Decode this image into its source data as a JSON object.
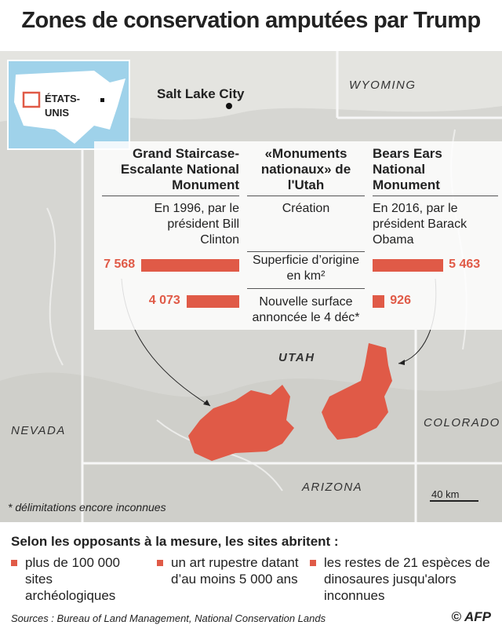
{
  "title": "Zones de conservation amputées par Trump",
  "inset": {
    "label_lines": [
      "ÉTATS-",
      "UNIS"
    ]
  },
  "map_labels": {
    "city": "Salt Lake City",
    "wyoming": "WYOMING",
    "utah": "UTAH",
    "nevada": "NEVADA",
    "colorado": "COLORADO",
    "arizona": "ARIZONA",
    "scale": "40 km"
  },
  "chart_data": {
    "type": "bar",
    "column_header": "«Monuments nationaux» de l'Utah",
    "row_labels": [
      "Création",
      "Superficie d’origine en km²",
      "Nouvelle surface annoncée le 4 déc*"
    ],
    "series": [
      {
        "name": "Grand Staircase-Escalante National Monument",
        "color": "#e05a47",
        "creation": "En 1996, par le président Bill Clinton",
        "values": [
          7568,
          4073
        ],
        "value_labels": [
          "7 568",
          "4 073"
        ]
      },
      {
        "name": "Bears Ears National Monument",
        "color": "#e05a47",
        "creation": "En 2016, par le président Barack Obama",
        "values": [
          5463,
          926
        ],
        "value_labels": [
          "5 463",
          "926"
        ]
      }
    ]
  },
  "footnote": "* délimitations encore inconnues",
  "sites": {
    "heading": "Selon les opposants à la mesure, les sites abritent :",
    "items": [
      "plus de 100 000 sites archéologiques",
      "un art rupestre datant d’au moins 5 000 ans",
      "les restes de 21 espèces de dinosaures jusqu'alors inconnues"
    ]
  },
  "sources": "Sources : Bureau of Land Management, National Conservation Lands",
  "credit": "© AFP"
}
